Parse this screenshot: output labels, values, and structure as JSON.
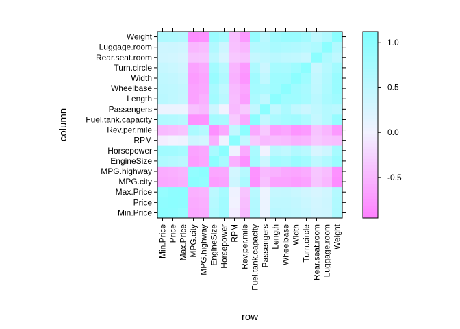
{
  "chart_data": {
    "type": "heatmap",
    "title": "",
    "xlabel": "row",
    "ylabel": "column",
    "variables": [
      "Min.Price",
      "Price",
      "Max.Price",
      "MPG.city",
      "MPG.highway",
      "EngineSize",
      "Horsepower",
      "RPM",
      "Rev.per.mile",
      "Fuel.tank.capacity",
      "Passengers",
      "Length",
      "Wheelbase",
      "Width",
      "Turn.circle",
      "Rear.seat.room",
      "Luggage.room",
      "Weight"
    ],
    "matrix": [
      [
        1.0,
        0.97,
        0.91,
        -0.62,
        -0.58,
        0.65,
        0.8,
        -0.04,
        -0.47,
        0.64,
        0.06,
        0.55,
        0.52,
        0.49,
        0.43,
        0.33,
        0.35,
        0.67
      ],
      [
        0.97,
        1.0,
        0.98,
        -0.59,
        -0.56,
        0.6,
        0.79,
        -0.0,
        -0.43,
        0.62,
        0.06,
        0.5,
        0.5,
        0.46,
        0.39,
        0.31,
        0.36,
        0.65
      ],
      [
        0.91,
        0.98,
        1.0,
        -0.55,
        -0.52,
        0.54,
        0.74,
        0.03,
        -0.38,
        0.57,
        0.05,
        0.44,
        0.45,
        0.4,
        0.33,
        0.27,
        0.33,
        0.61
      ],
      [
        -0.62,
        -0.59,
        -0.55,
        1.0,
        0.94,
        -0.71,
        -0.67,
        0.36,
        0.7,
        -0.81,
        -0.42,
        -0.67,
        -0.67,
        -0.72,
        -0.67,
        -0.38,
        -0.49,
        -0.84
      ],
      [
        -0.58,
        -0.56,
        -0.52,
        0.94,
        1.0,
        -0.63,
        -0.62,
        0.31,
        0.59,
        -0.79,
        -0.47,
        -0.54,
        -0.62,
        -0.64,
        -0.59,
        -0.37,
        -0.44,
        -0.81
      ],
      [
        0.65,
        0.6,
        0.54,
        -0.71,
        -0.63,
        1.0,
        0.73,
        -0.55,
        -0.82,
        0.76,
        0.37,
        0.78,
        0.73,
        0.87,
        0.78,
        0.51,
        0.64,
        0.85
      ],
      [
        0.8,
        0.79,
        0.74,
        -0.67,
        -0.62,
        0.73,
        1.0,
        0.04,
        -0.6,
        0.71,
        0.01,
        0.55,
        0.49,
        0.64,
        0.56,
        0.27,
        0.36,
        0.74
      ],
      [
        -0.04,
        -0.0,
        0.03,
        0.36,
        0.31,
        -0.55,
        0.04,
        1.0,
        0.49,
        -0.33,
        -0.47,
        -0.44,
        -0.47,
        -0.54,
        -0.51,
        -0.35,
        -0.41,
        -0.43
      ],
      [
        -0.47,
        -0.43,
        -0.38,
        0.7,
        0.59,
        -0.82,
        -0.6,
        0.49,
        1.0,
        -0.61,
        -0.34,
        -0.69,
        -0.64,
        -0.78,
        -0.73,
        -0.39,
        -0.5,
        -0.74
      ],
      [
        0.64,
        0.62,
        0.57,
        -0.81,
        -0.79,
        0.76,
        0.71,
        -0.33,
        -0.61,
        1.0,
        0.47,
        0.69,
        0.76,
        0.8,
        0.67,
        0.44,
        0.6,
        0.89
      ],
      [
        0.06,
        0.06,
        0.05,
        -0.42,
        -0.47,
        0.37,
        0.01,
        -0.47,
        -0.34,
        0.47,
        1.0,
        0.49,
        0.69,
        0.49,
        0.38,
        0.49,
        0.6,
        0.55
      ],
      [
        0.55,
        0.5,
        0.44,
        -0.67,
        -0.54,
        0.78,
        0.55,
        -0.44,
        -0.69,
        0.69,
        0.49,
        1.0,
        0.82,
        0.82,
        0.74,
        0.55,
        0.71,
        0.81
      ],
      [
        0.52,
        0.5,
        0.45,
        -0.67,
        -0.62,
        0.73,
        0.49,
        -0.47,
        -0.64,
        0.76,
        0.69,
        0.82,
        1.0,
        0.81,
        0.72,
        0.5,
        0.67,
        0.87
      ],
      [
        0.49,
        0.46,
        0.4,
        -0.72,
        -0.64,
        0.87,
        0.64,
        -0.54,
        -0.78,
        0.8,
        0.49,
        0.82,
        0.81,
        1.0,
        0.82,
        0.48,
        0.64,
        0.87
      ],
      [
        0.43,
        0.39,
        0.33,
        -0.67,
        -0.59,
        0.78,
        0.56,
        -0.51,
        -0.73,
        0.67,
        0.38,
        0.74,
        0.72,
        0.82,
        1.0,
        0.41,
        0.59,
        0.78
      ],
      [
        0.33,
        0.31,
        0.27,
        -0.38,
        -0.37,
        0.51,
        0.27,
        -0.35,
        -0.39,
        0.44,
        0.49,
        0.55,
        0.5,
        0.48,
        0.41,
        1.0,
        0.67,
        0.51
      ],
      [
        0.35,
        0.36,
        0.33,
        -0.49,
        -0.44,
        0.64,
        0.36,
        -0.41,
        -0.5,
        0.6,
        0.6,
        0.71,
        0.67,
        0.64,
        0.59,
        0.67,
        1.0,
        0.64
      ],
      [
        0.67,
        0.65,
        0.61,
        -0.84,
        -0.81,
        0.85,
        0.74,
        -0.43,
        -0.74,
        0.89,
        0.55,
        0.81,
        0.87,
        0.87,
        0.78,
        0.51,
        0.64,
        1.0
      ]
    ],
    "colorkey": {
      "range": [
        -0.95,
        1.12
      ],
      "ticks": [
        1.0,
        0.5,
        0.0,
        -0.5
      ],
      "tick_labels": [
        "1.0",
        "0.5",
        "0.0",
        "-0.5"
      ],
      "low_color": "#ff80ff",
      "mid_color": "#f2f2ff",
      "high_color": "#80ffff",
      "placement": "right"
    },
    "grid": false
  }
}
